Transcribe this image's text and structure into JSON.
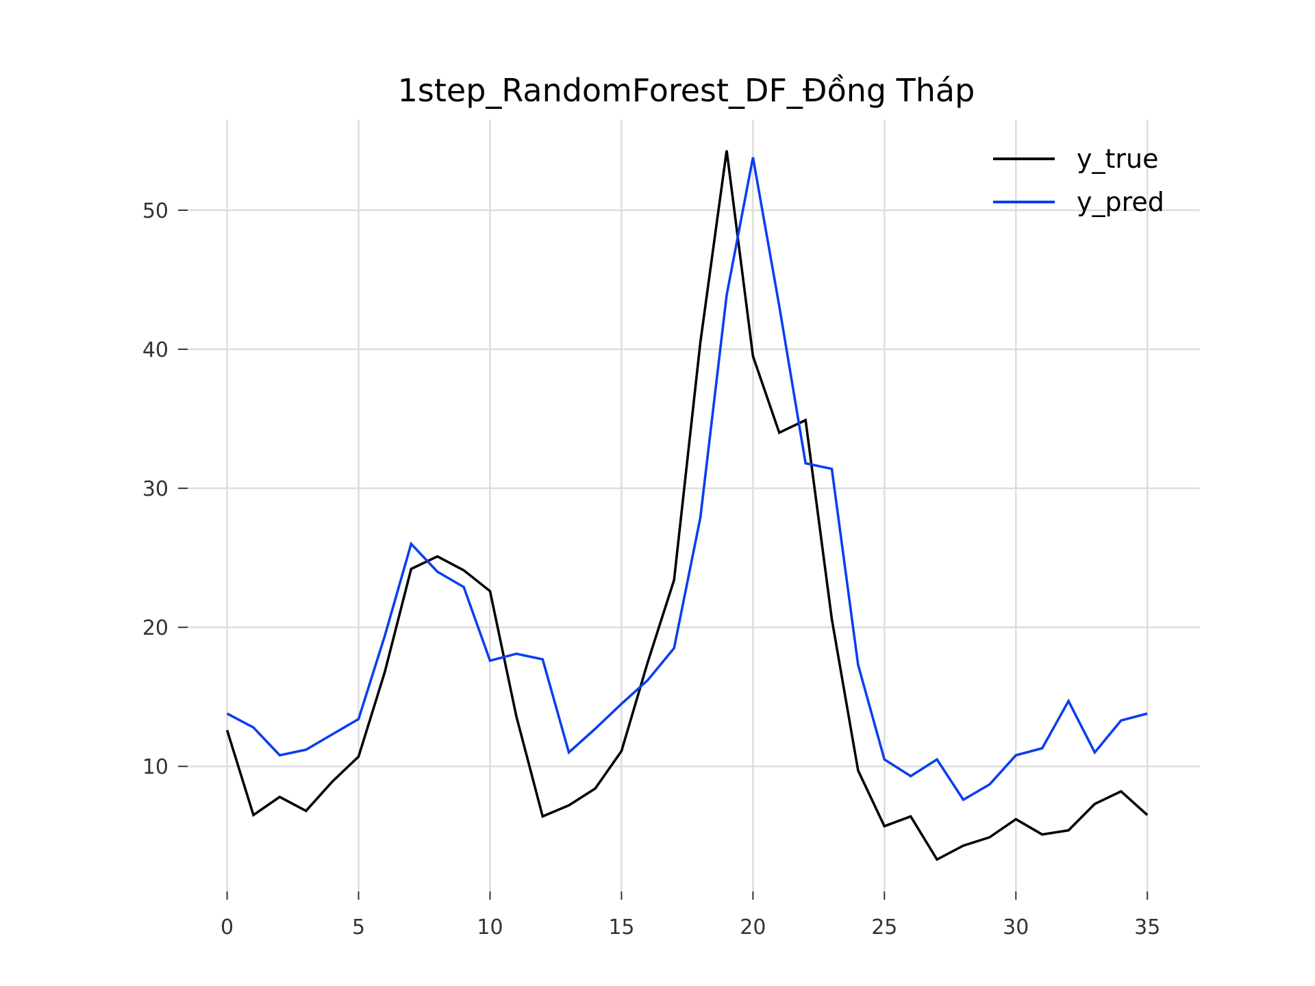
{
  "chart_data": {
    "type": "line",
    "title": "1step_RandomForest_DF_Đồng Tháp",
    "xlabel": "",
    "ylabel": "",
    "x": [
      0,
      1,
      2,
      3,
      4,
      5,
      6,
      7,
      8,
      9,
      10,
      11,
      12,
      13,
      14,
      15,
      16,
      17,
      18,
      19,
      20,
      21,
      22,
      23,
      24,
      25,
      26,
      27,
      28,
      29,
      30,
      31,
      32,
      33,
      34,
      35
    ],
    "xlim": [
      -1.5,
      37
    ],
    "ylim": [
      1,
      56.5
    ],
    "xticks": [
      0,
      5,
      10,
      15,
      20,
      25,
      30,
      35
    ],
    "yticks": [
      10,
      20,
      30,
      40,
      50
    ],
    "grid": true,
    "legend_position": "top-right",
    "series": [
      {
        "name": "y_true",
        "color": "#000000",
        "values": [
          12.6,
          6.5,
          7.8,
          6.8,
          8.9,
          10.7,
          16.8,
          24.2,
          25.1,
          24.1,
          22.6,
          13.6,
          6.4,
          7.2,
          8.4,
          11.1,
          17.5,
          23.4,
          40.5,
          54.3,
          39.5,
          34.0,
          34.9,
          20.6,
          9.7,
          5.7,
          6.4,
          3.3,
          4.3,
          4.9,
          6.2,
          5.1,
          5.4,
          7.3,
          8.2,
          6.5
        ]
      },
      {
        "name": "y_pred",
        "color": "#0a3ef0",
        "values": [
          13.8,
          12.8,
          10.8,
          11.2,
          12.3,
          13.4,
          19.4,
          26.0,
          24.0,
          22.9,
          17.6,
          18.1,
          17.7,
          11.0,
          12.7,
          14.5,
          16.2,
          18.5,
          27.9,
          43.9,
          53.8,
          43.1,
          31.8,
          31.4,
          17.3,
          10.5,
          9.3,
          10.5,
          7.6,
          8.7,
          10.8,
          11.3,
          14.7,
          11.0,
          13.3,
          13.8
        ]
      }
    ]
  }
}
